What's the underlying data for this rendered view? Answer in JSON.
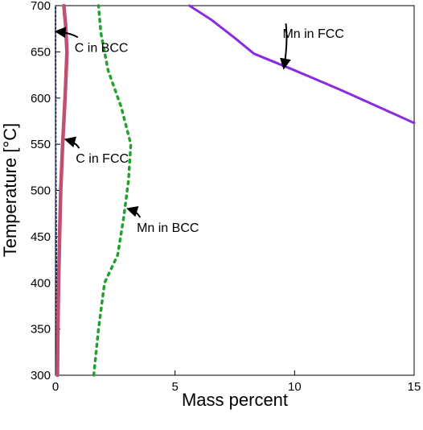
{
  "chart_data": {
    "type": "line",
    "xlabel": "Mass percent",
    "ylabel": "Temperature [°C]",
    "xlim": [
      0,
      15
    ],
    "ylim": [
      300,
      700
    ],
    "xticks": [
      0,
      5,
      10,
      15
    ],
    "yticks": [
      300,
      350,
      400,
      450,
      500,
      550,
      600,
      650,
      700
    ],
    "grid": false,
    "legend": "none",
    "series": [
      {
        "name": "C in BCC",
        "style": "dotted",
        "color": "#1f2a5c",
        "x": [
          0.05,
          0.05,
          0.04,
          0.03,
          0.02,
          0.01,
          0.01,
          0.005,
          0.005
        ],
        "y": [
          300,
          350,
          400,
          450,
          500,
          550,
          600,
          650,
          700
        ]
      },
      {
        "name": "C in FCC",
        "style": "solid",
        "color": "#c0506f",
        "x": [
          0.08,
          0.1,
          0.13,
          0.17,
          0.22,
          0.3,
          0.4,
          0.48,
          0.42,
          0.35
        ],
        "y": [
          300,
          350,
          400,
          450,
          500,
          550,
          600,
          650,
          680,
          700
        ]
      },
      {
        "name": "Mn in BCC",
        "style": "dotted",
        "color": "#22a12e",
        "x": [
          1.6,
          1.8,
          2.05,
          2.6,
          2.85,
          3.05,
          3.15,
          2.75,
          2.2,
          1.9,
          1.8
        ],
        "y": [
          300,
          350,
          400,
          430,
          470,
          510,
          550,
          590,
          630,
          670,
          700
        ]
      },
      {
        "name": "Mn in FCC",
        "style": "solid",
        "color": "#8a2be2",
        "x": [
          5.6,
          6.5,
          7.5,
          8.3,
          10,
          12,
          15
        ],
        "y": [
          700,
          685,
          665,
          648,
          630,
          608,
          573
        ]
      }
    ],
    "annotations": [
      {
        "text": "C in BCC",
        "x": 0.8,
        "y": 650,
        "arrow_to": [
          0.05,
          672
        ]
      },
      {
        "text": "C in FCC",
        "x": 0.85,
        "y": 530,
        "arrow_to": [
          0.45,
          555
        ]
      },
      {
        "text": "Mn in BCC",
        "x": 3.4,
        "y": 455,
        "arrow_to": [
          3.05,
          480
        ]
      },
      {
        "text": "Mn in FCC",
        "x": 9.5,
        "y": 665,
        "arrow_to": [
          9.55,
          633
        ]
      }
    ]
  }
}
